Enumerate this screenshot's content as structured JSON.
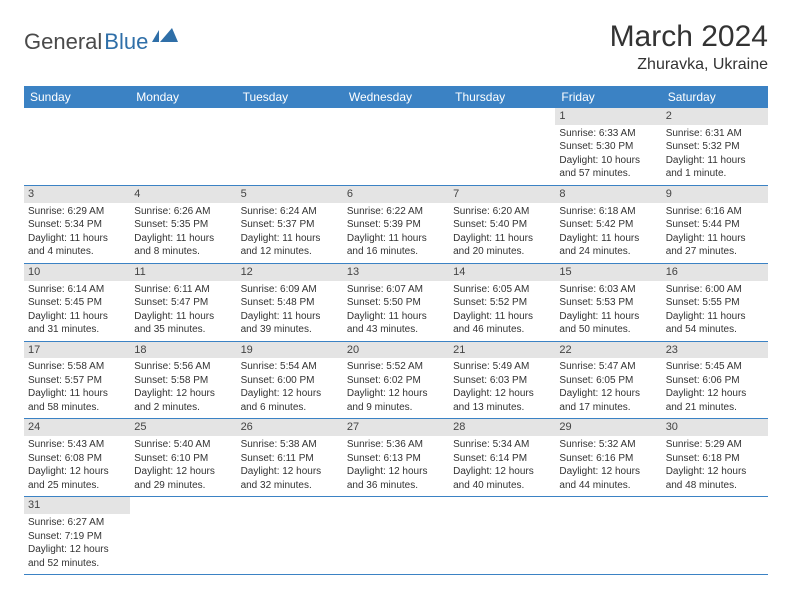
{
  "logo": {
    "text1": "General",
    "text2": "Blue"
  },
  "title": "March 2024",
  "location": "Zhuravka, Ukraine",
  "colors": {
    "header_bg": "#3b82c4",
    "header_fg": "#ffffff",
    "daynum_bg": "#e4e4e4",
    "border": "#3b82c4",
    "logo_blue": "#2f6fa8"
  },
  "weekdays": [
    "Sunday",
    "Monday",
    "Tuesday",
    "Wednesday",
    "Thursday",
    "Friday",
    "Saturday"
  ],
  "weeks": [
    [
      null,
      null,
      null,
      null,
      null,
      {
        "n": "1",
        "sr": "Sunrise: 6:33 AM",
        "ss": "Sunset: 5:30 PM",
        "dl1": "Daylight: 10 hours",
        "dl2": "and 57 minutes."
      },
      {
        "n": "2",
        "sr": "Sunrise: 6:31 AM",
        "ss": "Sunset: 5:32 PM",
        "dl1": "Daylight: 11 hours",
        "dl2": "and 1 minute."
      }
    ],
    [
      {
        "n": "3",
        "sr": "Sunrise: 6:29 AM",
        "ss": "Sunset: 5:34 PM",
        "dl1": "Daylight: 11 hours",
        "dl2": "and 4 minutes."
      },
      {
        "n": "4",
        "sr": "Sunrise: 6:26 AM",
        "ss": "Sunset: 5:35 PM",
        "dl1": "Daylight: 11 hours",
        "dl2": "and 8 minutes."
      },
      {
        "n": "5",
        "sr": "Sunrise: 6:24 AM",
        "ss": "Sunset: 5:37 PM",
        "dl1": "Daylight: 11 hours",
        "dl2": "and 12 minutes."
      },
      {
        "n": "6",
        "sr": "Sunrise: 6:22 AM",
        "ss": "Sunset: 5:39 PM",
        "dl1": "Daylight: 11 hours",
        "dl2": "and 16 minutes."
      },
      {
        "n": "7",
        "sr": "Sunrise: 6:20 AM",
        "ss": "Sunset: 5:40 PM",
        "dl1": "Daylight: 11 hours",
        "dl2": "and 20 minutes."
      },
      {
        "n": "8",
        "sr": "Sunrise: 6:18 AM",
        "ss": "Sunset: 5:42 PM",
        "dl1": "Daylight: 11 hours",
        "dl2": "and 24 minutes."
      },
      {
        "n": "9",
        "sr": "Sunrise: 6:16 AM",
        "ss": "Sunset: 5:44 PM",
        "dl1": "Daylight: 11 hours",
        "dl2": "and 27 minutes."
      }
    ],
    [
      {
        "n": "10",
        "sr": "Sunrise: 6:14 AM",
        "ss": "Sunset: 5:45 PM",
        "dl1": "Daylight: 11 hours",
        "dl2": "and 31 minutes."
      },
      {
        "n": "11",
        "sr": "Sunrise: 6:11 AM",
        "ss": "Sunset: 5:47 PM",
        "dl1": "Daylight: 11 hours",
        "dl2": "and 35 minutes."
      },
      {
        "n": "12",
        "sr": "Sunrise: 6:09 AM",
        "ss": "Sunset: 5:48 PM",
        "dl1": "Daylight: 11 hours",
        "dl2": "and 39 minutes."
      },
      {
        "n": "13",
        "sr": "Sunrise: 6:07 AM",
        "ss": "Sunset: 5:50 PM",
        "dl1": "Daylight: 11 hours",
        "dl2": "and 43 minutes."
      },
      {
        "n": "14",
        "sr": "Sunrise: 6:05 AM",
        "ss": "Sunset: 5:52 PM",
        "dl1": "Daylight: 11 hours",
        "dl2": "and 46 minutes."
      },
      {
        "n": "15",
        "sr": "Sunrise: 6:03 AM",
        "ss": "Sunset: 5:53 PM",
        "dl1": "Daylight: 11 hours",
        "dl2": "and 50 minutes."
      },
      {
        "n": "16",
        "sr": "Sunrise: 6:00 AM",
        "ss": "Sunset: 5:55 PM",
        "dl1": "Daylight: 11 hours",
        "dl2": "and 54 minutes."
      }
    ],
    [
      {
        "n": "17",
        "sr": "Sunrise: 5:58 AM",
        "ss": "Sunset: 5:57 PM",
        "dl1": "Daylight: 11 hours",
        "dl2": "and 58 minutes."
      },
      {
        "n": "18",
        "sr": "Sunrise: 5:56 AM",
        "ss": "Sunset: 5:58 PM",
        "dl1": "Daylight: 12 hours",
        "dl2": "and 2 minutes."
      },
      {
        "n": "19",
        "sr": "Sunrise: 5:54 AM",
        "ss": "Sunset: 6:00 PM",
        "dl1": "Daylight: 12 hours",
        "dl2": "and 6 minutes."
      },
      {
        "n": "20",
        "sr": "Sunrise: 5:52 AM",
        "ss": "Sunset: 6:02 PM",
        "dl1": "Daylight: 12 hours",
        "dl2": "and 9 minutes."
      },
      {
        "n": "21",
        "sr": "Sunrise: 5:49 AM",
        "ss": "Sunset: 6:03 PM",
        "dl1": "Daylight: 12 hours",
        "dl2": "and 13 minutes."
      },
      {
        "n": "22",
        "sr": "Sunrise: 5:47 AM",
        "ss": "Sunset: 6:05 PM",
        "dl1": "Daylight: 12 hours",
        "dl2": "and 17 minutes."
      },
      {
        "n": "23",
        "sr": "Sunrise: 5:45 AM",
        "ss": "Sunset: 6:06 PM",
        "dl1": "Daylight: 12 hours",
        "dl2": "and 21 minutes."
      }
    ],
    [
      {
        "n": "24",
        "sr": "Sunrise: 5:43 AM",
        "ss": "Sunset: 6:08 PM",
        "dl1": "Daylight: 12 hours",
        "dl2": "and 25 minutes."
      },
      {
        "n": "25",
        "sr": "Sunrise: 5:40 AM",
        "ss": "Sunset: 6:10 PM",
        "dl1": "Daylight: 12 hours",
        "dl2": "and 29 minutes."
      },
      {
        "n": "26",
        "sr": "Sunrise: 5:38 AM",
        "ss": "Sunset: 6:11 PM",
        "dl1": "Daylight: 12 hours",
        "dl2": "and 32 minutes."
      },
      {
        "n": "27",
        "sr": "Sunrise: 5:36 AM",
        "ss": "Sunset: 6:13 PM",
        "dl1": "Daylight: 12 hours",
        "dl2": "and 36 minutes."
      },
      {
        "n": "28",
        "sr": "Sunrise: 5:34 AM",
        "ss": "Sunset: 6:14 PM",
        "dl1": "Daylight: 12 hours",
        "dl2": "and 40 minutes."
      },
      {
        "n": "29",
        "sr": "Sunrise: 5:32 AM",
        "ss": "Sunset: 6:16 PM",
        "dl1": "Daylight: 12 hours",
        "dl2": "and 44 minutes."
      },
      {
        "n": "30",
        "sr": "Sunrise: 5:29 AM",
        "ss": "Sunset: 6:18 PM",
        "dl1": "Daylight: 12 hours",
        "dl2": "and 48 minutes."
      }
    ],
    [
      {
        "n": "31",
        "sr": "Sunrise: 6:27 AM",
        "ss": "Sunset: 7:19 PM",
        "dl1": "Daylight: 12 hours",
        "dl2": "and 52 minutes."
      },
      null,
      null,
      null,
      null,
      null,
      null
    ]
  ]
}
